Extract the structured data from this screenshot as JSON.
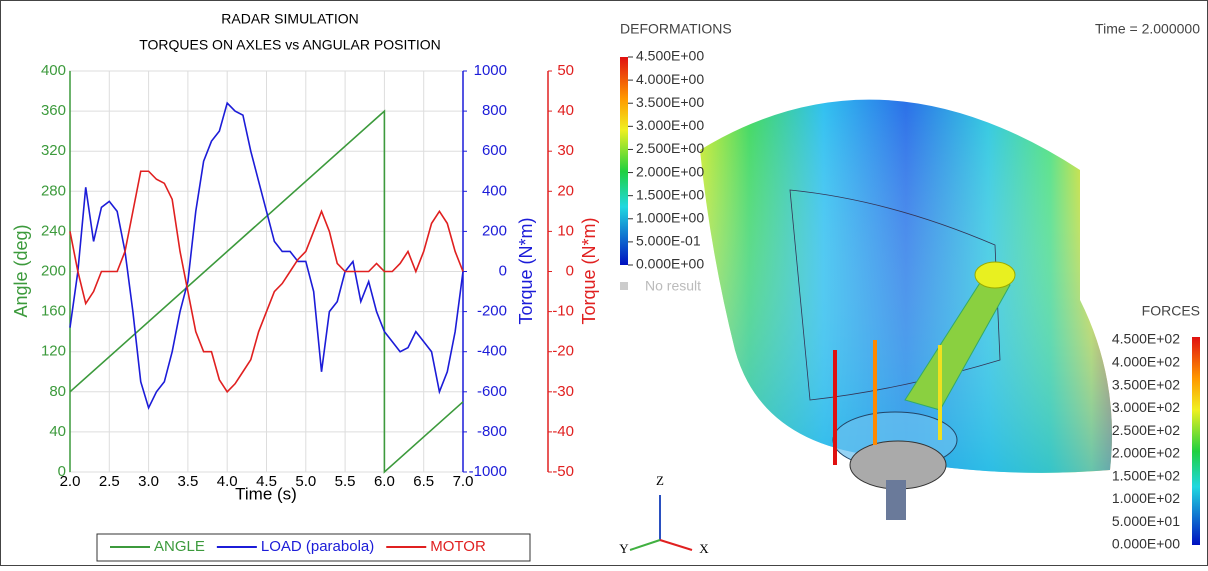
{
  "chart_data": {
    "type": "line",
    "title": "RADAR SIMULATION",
    "subtitle": "TORQUES ON AXLES vs ANGULAR POSITION",
    "x_label": "Time (s)",
    "y_label": "Angle (deg)",
    "y2_label": "Torque (N*m)",
    "y3_label": "Torque (N*m)",
    "xlim": [
      2,
      7
    ],
    "xticks": [
      {
        "value": 2,
        "label": "2.0"
      },
      2.5,
      {
        "value": 3,
        "label": "3.0"
      },
      3.5,
      {
        "value": 4,
        "label": "4.0"
      },
      4.5,
      {
        "value": 5,
        "label": "5.0"
      },
      5.5,
      {
        "value": 6,
        "label": "6.0"
      },
      6.5,
      {
        "value": 7,
        "label": "7.0"
      }
    ],
    "ylim": [
      0,
      400
    ],
    "yticks": [
      0,
      40,
      80,
      120,
      160,
      200,
      240,
      280,
      320,
      360,
      400
    ],
    "y2lim": [
      -1000,
      1000
    ],
    "y2ticks": [
      -1000,
      -800,
      -600,
      -400,
      -200,
      0,
      200,
      400,
      600,
      800,
      1000
    ],
    "y3lim": [
      -50,
      50
    ],
    "y3ticks": [
      -50,
      -40,
      -30,
      -20,
      -10,
      0,
      10,
      20,
      30,
      40,
      50
    ],
    "grid": true,
    "legend": "bottom",
    "series": [
      {
        "name": "ANGLE",
        "color": "#3c9a3c",
        "axis": "y",
        "x": [
          2,
          6,
          6,
          7
        ],
        "values": [
          80,
          360,
          0,
          70
        ]
      },
      {
        "name": "LOAD (parabola)",
        "color": "#1c1cd8",
        "axis": "y2",
        "x": [
          2.0,
          2.1,
          2.2,
          2.3,
          2.4,
          2.5,
          2.6,
          2.7,
          2.8,
          2.9,
          3.0,
          3.1,
          3.2,
          3.3,
          3.4,
          3.5,
          3.6,
          3.7,
          3.8,
          3.9,
          4.0,
          4.1,
          4.2,
          4.3,
          4.4,
          4.5,
          4.6,
          4.7,
          4.8,
          4.9,
          5.0,
          5.1,
          5.2,
          5.3,
          5.4,
          5.5,
          5.6,
          5.7,
          5.8,
          5.9,
          6.0,
          6.1,
          6.2,
          6.3,
          6.4,
          6.5,
          6.6,
          6.7,
          6.8,
          6.9,
          7.0
        ],
        "values": [
          -280,
          0,
          420,
          150,
          320,
          350,
          300,
          100,
          -200,
          -550,
          -680,
          -600,
          -550,
          -400,
          -200,
          -50,
          300,
          550,
          650,
          700,
          840,
          800,
          780,
          600,
          450,
          300,
          150,
          100,
          100,
          50,
          50,
          -100,
          -500,
          -200,
          -150,
          0,
          50,
          -150,
          -50,
          -200,
          -300,
          -350,
          -400,
          -380,
          -300,
          -350,
          -400,
          -600,
          -500,
          -300,
          0
        ]
      },
      {
        "name": "MOTOR",
        "color": "#e02020",
        "axis": "y3",
        "x": [
          2.0,
          2.1,
          2.2,
          2.3,
          2.4,
          2.5,
          2.6,
          2.7,
          2.8,
          2.9,
          3.0,
          3.1,
          3.2,
          3.3,
          3.4,
          3.5,
          3.6,
          3.7,
          3.8,
          3.9,
          4.0,
          4.1,
          4.2,
          4.3,
          4.4,
          4.5,
          4.6,
          4.7,
          4.8,
          4.9,
          5.0,
          5.1,
          5.2,
          5.3,
          5.4,
          5.5,
          5.6,
          5.7,
          5.8,
          5.9,
          6.0,
          6.1,
          6.2,
          6.3,
          6.4,
          6.5,
          6.6,
          6.7,
          6.8,
          6.9,
          7.0
        ],
        "values": [
          10,
          0,
          -8,
          -5,
          0,
          0,
          0,
          5,
          15,
          25,
          25,
          23,
          22,
          18,
          5,
          -5,
          -15,
          -20,
          -20,
          -27,
          -30,
          -28,
          -25,
          -22,
          -15,
          -10,
          -5,
          -3,
          0,
          3,
          5,
          10,
          15,
          10,
          2,
          0,
          0,
          0,
          0,
          2,
          0,
          0,
          2,
          5,
          0,
          5,
          12,
          15,
          12,
          5,
          0
        ]
      }
    ]
  },
  "render": {
    "deformation_title": "DEFORMATIONS",
    "time": "Time = 2.000000",
    "deformation_scale": [
      "4.500E+00",
      "4.000E+00",
      "3.500E+00",
      "3.000E+00",
      "2.500E+00",
      "2.000E+00",
      "1.500E+00",
      "1.000E+00",
      "5.000E-01",
      "0.000E+00"
    ],
    "no_result": "No result",
    "forces_title": "FORCES",
    "force_scale": [
      "4.500E+02",
      "4.000E+02",
      "3.500E+02",
      "3.000E+02",
      "2.500E+02",
      "2.000E+02",
      "1.500E+02",
      "1.000E+02",
      "5.000E+01",
      "0.000E+00"
    ],
    "triad": [
      "Z",
      "Y",
      "X"
    ]
  }
}
